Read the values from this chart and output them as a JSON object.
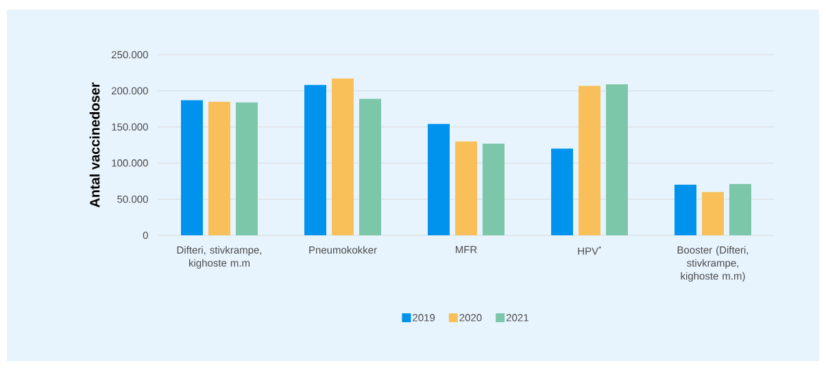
{
  "chart_data": {
    "type": "bar",
    "ylabel": "Antal vaccinedoser",
    "categories": [
      "Difteri, stivkrampe, kighoste m.m",
      "Pneumokokker",
      "MFR",
      "HPV$^{*}$",
      "Booster (Difteri, stivkrampe, kighoste m.m)"
    ],
    "series": [
      {
        "name": "2019",
        "color": "#0093ee",
        "values": [
          187000,
          208000,
          154000,
          120000,
          70000
        ]
      },
      {
        "name": "2020",
        "color": "#f9c05a",
        "values": [
          185000,
          217000,
          130000,
          207000,
          60000
        ]
      },
      {
        "name": "2021",
        "color": "#7cc6aa",
        "values": [
          184000,
          189000,
          127000,
          209000,
          71000
        ]
      }
    ],
    "ylim": [
      0,
      250000
    ],
    "yticks": [
      0,
      {
        "value": 50000,
        "label": "50.000"
      },
      {
        "value": 100000,
        "label": "100.000"
      },
      {
        "value": 150000,
        "label": "150.000"
      },
      {
        "value": 200000,
        "label": "200.000"
      },
      {
        "value": 250000,
        "label": "250.000"
      }
    ],
    "grid": "y",
    "legend": "bottom"
  }
}
